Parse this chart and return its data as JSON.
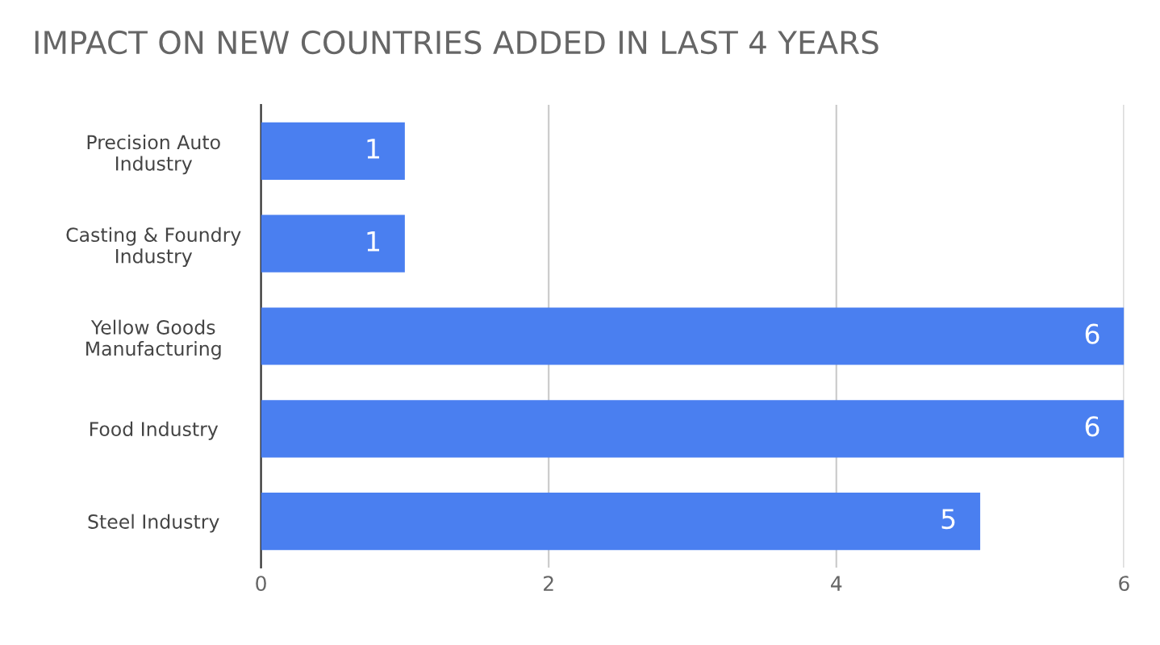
{
  "chart_data": {
    "type": "bar",
    "orientation": "horizontal",
    "title": "IMPACT ON NEW COUNTRIES ADDED IN LAST 4 YEARS",
    "categories": [
      "Precision Auto\nIndustry",
      "Casting & Foundry\nIndustry",
      "Yellow Goods\nManufacturing",
      "Food Industry",
      "Steel Industry"
    ],
    "values": [
      1,
      1,
      6,
      6,
      5
    ],
    "color": "#4a7ff0",
    "data_labels": true,
    "xlim": [
      0,
      6
    ],
    "xticks": [
      0,
      2,
      4,
      6
    ],
    "grid": "x",
    "legend": false
  }
}
